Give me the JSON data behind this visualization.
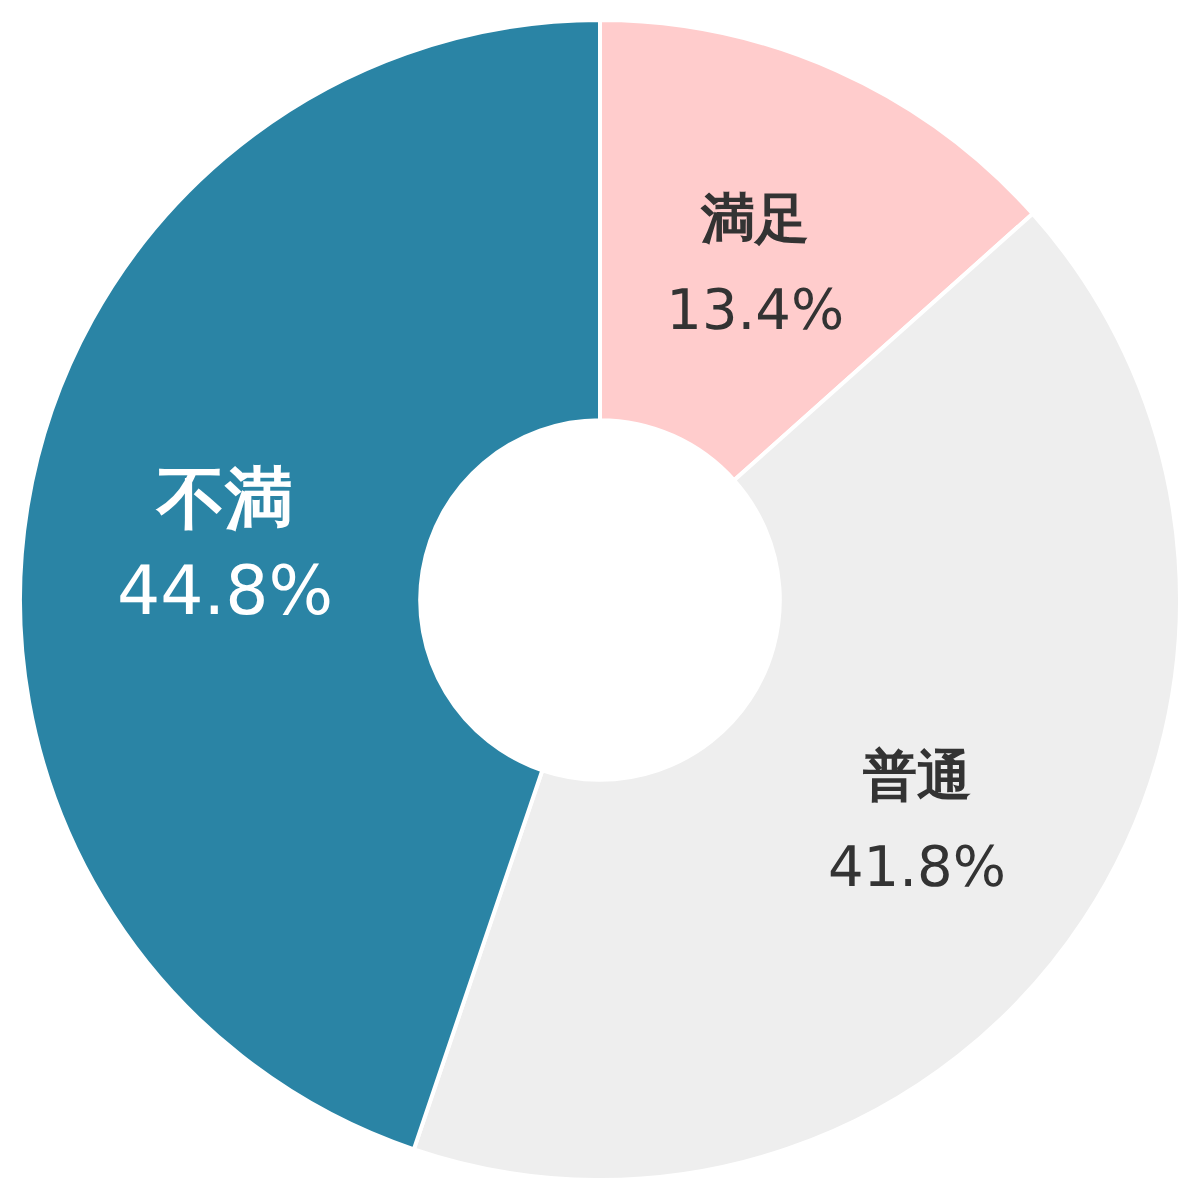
{
  "chart_data": {
    "type": "donut",
    "categories": [
      "満足",
      "普通",
      "不満"
    ],
    "values": [
      13.4,
      41.8,
      44.8
    ],
    "value_labels": [
      "13.4%",
      "41.8%",
      "44.8%"
    ],
    "colors": [
      "#ffcccc",
      "#eeeeee",
      "#2a84a5"
    ]
  }
}
